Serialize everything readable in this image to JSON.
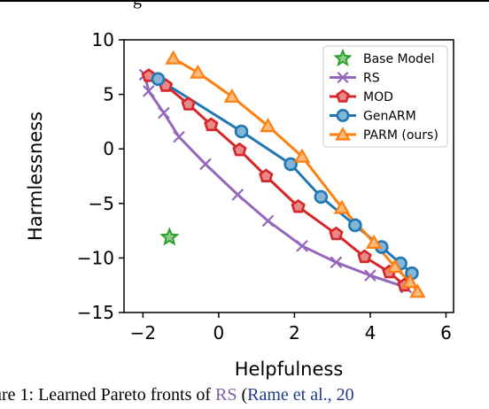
{
  "page": {
    "top_fragment": "g",
    "caption": {
      "prefix": "ure 1: Learned Pareto fronts of ",
      "link": "RS",
      "middle": " (",
      "citation": "Rame et al., 20"
    }
  },
  "chart_data": {
    "type": "line",
    "title": "",
    "xlabel": "Helpfulness",
    "ylabel": "Harmlessness",
    "xlim": [
      -2.5,
      6.2
    ],
    "ylim": [
      -15,
      10
    ],
    "xticks": [
      "−2",
      "0",
      "2",
      "4",
      "6"
    ],
    "yticks": [
      "10",
      "5",
      "0",
      "−5",
      "−10",
      "−15"
    ],
    "xtick_values": [
      -2,
      0,
      2,
      4,
      6
    ],
    "ytick_values": [
      10,
      5,
      0,
      -5,
      -10,
      -15
    ],
    "grid": false,
    "legend_position": "top-right",
    "series": [
      {
        "name": "Base Model",
        "color": "#2ca02c",
        "marker": "star",
        "line": false,
        "points": [
          [
            -1.3,
            -8.1
          ]
        ]
      },
      {
        "name": "RS",
        "color": "#9467bd",
        "marker": "x",
        "line": true,
        "points": [
          [
            -1.95,
            6.8
          ],
          [
            -1.85,
            5.3
          ],
          [
            -1.45,
            3.3
          ],
          [
            -1.05,
            1.1
          ],
          [
            -0.35,
            -1.4
          ],
          [
            0.5,
            -4.2
          ],
          [
            1.3,
            -6.6
          ],
          [
            2.2,
            -8.9
          ],
          [
            3.1,
            -10.4
          ],
          [
            4.0,
            -11.6
          ],
          [
            4.95,
            -12.7
          ]
        ]
      },
      {
        "name": "MOD",
        "color": "#d62728",
        "marker": "pentagon",
        "line": true,
        "points": [
          [
            -1.85,
            6.7
          ],
          [
            -1.4,
            5.8
          ],
          [
            -0.8,
            4.1
          ],
          [
            -0.2,
            2.2
          ],
          [
            0.55,
            -0.1
          ],
          [
            1.25,
            -2.5
          ],
          [
            2.1,
            -5.3
          ],
          [
            3.1,
            -7.8
          ],
          [
            3.85,
            -9.9
          ],
          [
            4.5,
            -11.3
          ],
          [
            4.9,
            -12.5
          ]
        ]
      },
      {
        "name": "GenARM",
        "color": "#1f77b4",
        "marker": "circle",
        "line": true,
        "points": [
          [
            -1.6,
            6.4
          ],
          [
            0.6,
            1.6
          ],
          [
            1.9,
            -1.4
          ],
          [
            2.7,
            -4.4
          ],
          [
            3.6,
            -7.0
          ],
          [
            4.3,
            -9.0
          ],
          [
            4.8,
            -10.5
          ],
          [
            5.1,
            -11.4
          ]
        ]
      },
      {
        "name": "PARM (ours)",
        "color": "#ff7f0e",
        "marker": "triangle",
        "line": true,
        "points": [
          [
            -1.2,
            8.3
          ],
          [
            -0.55,
            7.0
          ],
          [
            0.35,
            4.8
          ],
          [
            1.3,
            2.1
          ],
          [
            2.2,
            -0.7
          ],
          [
            3.25,
            -5.4
          ],
          [
            4.1,
            -8.6
          ],
          [
            4.65,
            -10.8
          ],
          [
            5.05,
            -12.2
          ],
          [
            5.25,
            -13.1
          ]
        ]
      }
    ]
  }
}
